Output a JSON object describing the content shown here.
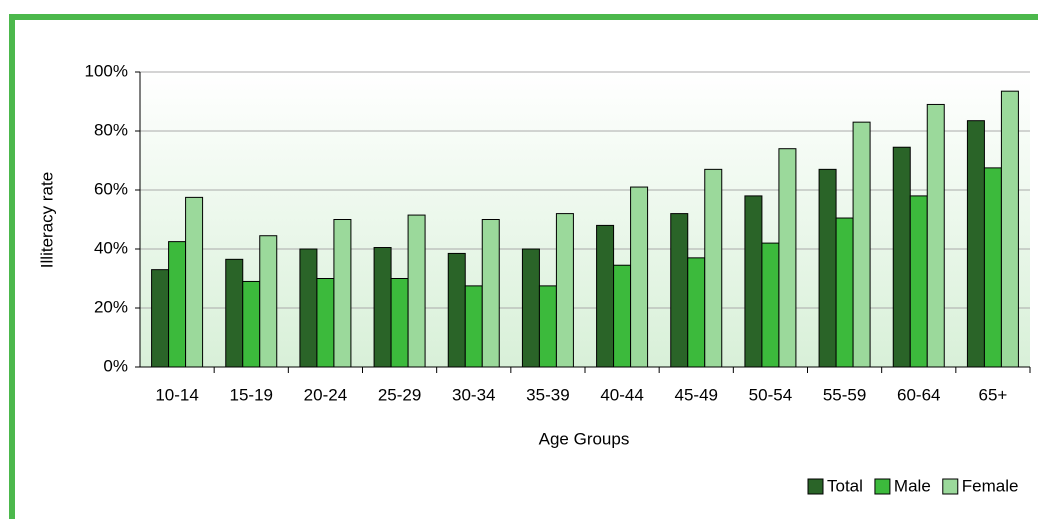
{
  "chart_data": {
    "type": "bar",
    "xlabel": "Age Groups",
    "ylabel": "Illiteracy rate",
    "categories": [
      "10-14",
      "15-19",
      "20-24",
      "25-29",
      "30-34",
      "35-39",
      "40-44",
      "45-49",
      "50-54",
      "55-59",
      "60-64",
      "65+"
    ],
    "series": [
      {
        "name": "Total",
        "color": "#2a6428",
        "values": [
          33,
          36.5,
          40,
          40.5,
          38.5,
          40,
          48,
          52,
          58,
          67,
          74.5,
          83.5
        ]
      },
      {
        "name": "Male",
        "color": "#3cba3c",
        "values": [
          42.5,
          29,
          30,
          30,
          27.5,
          27.5,
          34.5,
          37,
          42,
          50.5,
          58,
          67.5
        ]
      },
      {
        "name": "Female",
        "color": "#9bd99b",
        "values": [
          57.5,
          44.5,
          50,
          51.5,
          50,
          52,
          61,
          67,
          74,
          83,
          89,
          93.5
        ]
      }
    ],
    "ylim": [
      0,
      100
    ],
    "yticks": [
      {
        "value": 0,
        "label": "0%"
      },
      {
        "value": 20,
        "label": "20%"
      },
      {
        "value": 40,
        "label": "40%"
      },
      {
        "value": 60,
        "label": "60%"
      },
      {
        "value": 80,
        "label": "80%"
      },
      {
        "value": 100,
        "label": "100%"
      }
    ],
    "grid": true,
    "legend": "bottom-right"
  }
}
